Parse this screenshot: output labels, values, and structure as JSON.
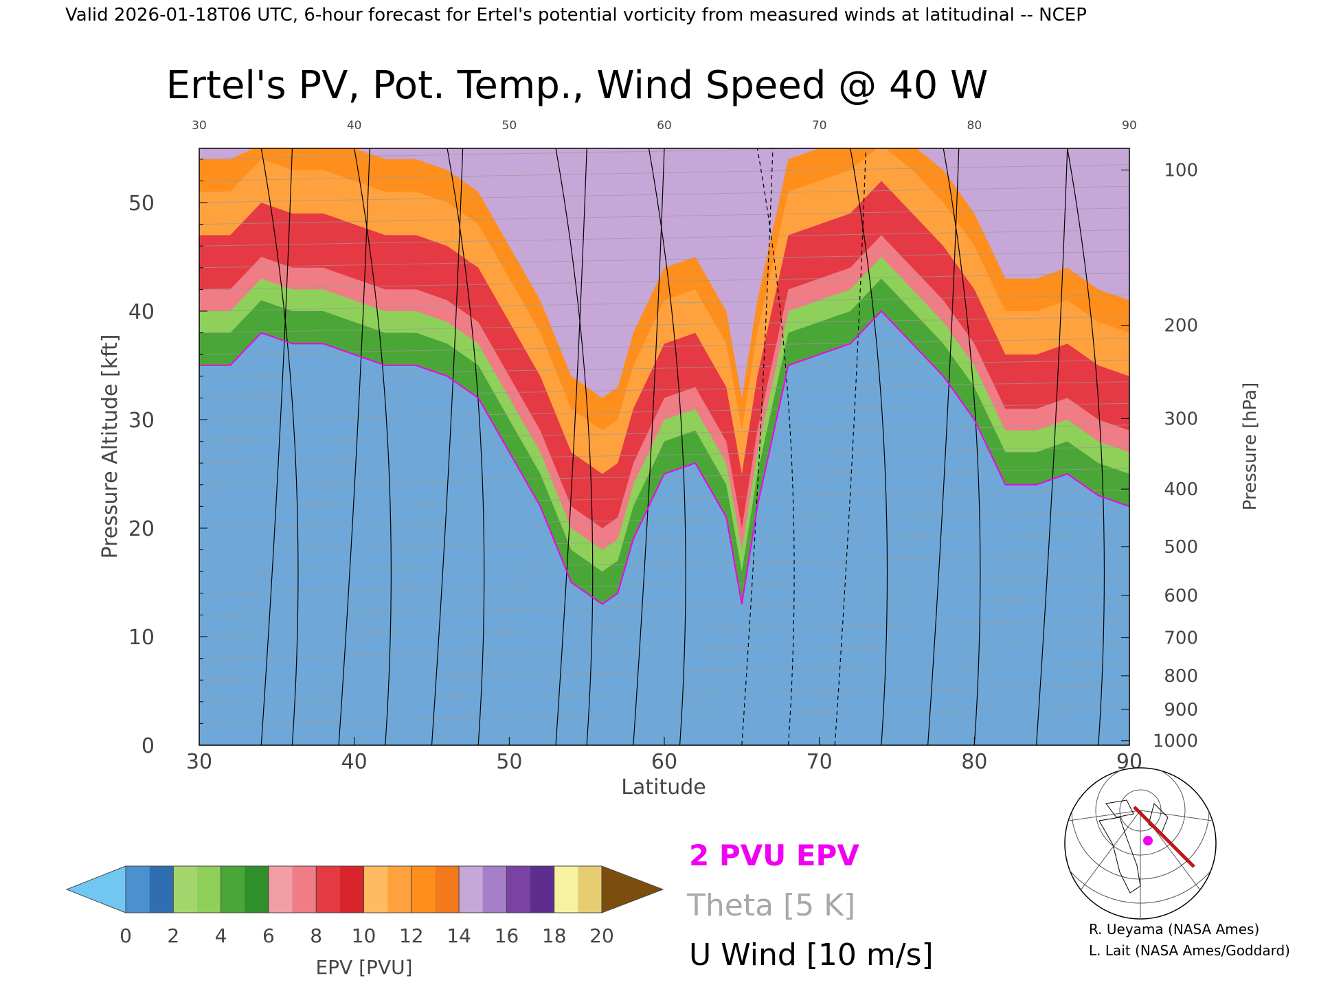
{
  "header": {
    "line": "Valid 2026-01-18T06 UTC, 6-hour forecast for Ertel's potential vorticity from measured winds at latitudinal -- NCEP"
  },
  "chart_data": {
    "type": "heatmap",
    "title": "Ertel's PV, Pot. Temp., Wind Speed @ 40 W",
    "xlabel": "Latitude",
    "ylabel": "Pressure Altitude [kft]",
    "y2label": "Pressure [hPa]",
    "xlim": [
      30,
      90
    ],
    "ylim": [
      0,
      55
    ],
    "x_ticks": [
      "30",
      "40",
      "50",
      "60",
      "70",
      "80",
      "90"
    ],
    "y_ticks": [
      "0",
      "10",
      "20",
      "30",
      "40",
      "50"
    ],
    "pressure_ticks": [
      {
        "label": "100",
        "kft": 53.0
      },
      {
        "label": "200",
        "kft": 38.7
      },
      {
        "label": "300",
        "kft": 30.1
      },
      {
        "label": "400",
        "kft": 23.6
      },
      {
        "label": "500",
        "kft": 18.3
      },
      {
        "label": "600",
        "kft": 13.8
      },
      {
        "label": "700",
        "kft": 9.9
      },
      {
        "label": "800",
        "kft": 6.4
      },
      {
        "label": "900",
        "kft": 3.3
      },
      {
        "label": "1000",
        "kft": 0.4
      }
    ],
    "pv_2pvu_contour": {
      "lat": [
        30,
        32,
        34,
        36,
        38,
        40,
        42,
        44,
        46,
        48,
        50,
        52,
        54,
        56,
        57,
        58,
        60,
        62,
        64,
        65,
        66,
        68,
        70,
        72,
        74,
        76,
        78,
        80,
        82,
        84,
        86,
        88,
        90
      ],
      "kft": [
        35,
        35,
        38,
        37,
        37,
        36,
        35,
        35,
        34,
        32,
        27,
        22,
        15,
        13,
        14,
        19,
        25,
        26,
        21,
        13,
        22,
        35,
        36,
        37,
        40,
        37,
        34,
        30,
        24,
        24,
        25,
        23,
        22
      ]
    },
    "epv_colorbar": {
      "label": "EPV [PVU]",
      "ticks": [
        "0",
        "2",
        "4",
        "6",
        "8",
        "10",
        "12",
        "14",
        "16",
        "18",
        "20"
      ],
      "colors": [
        "#72c7f2",
        "#4b91cf",
        "#2f6fb1",
        "#a4d56c",
        "#8ed05a",
        "#4aa636",
        "#2f8f2a",
        "#f39ea4",
        "#f07c86",
        "#e53a44",
        "#d9242c",
        "#ffbb62",
        "#ffa23e",
        "#ff8f1c",
        "#f4781c",
        "#c6a7d8",
        "#a77fc8",
        "#7b42a6",
        "#5d2e8e",
        "#f6f2a0",
        "#e6cd72",
        "#7c4e0d"
      ]
    }
  },
  "legend": {
    "pv": "2 PVU EPV",
    "theta": "Theta [5 K]",
    "uwind": "U Wind [10 m/s]",
    "pv_color": "#f000f0",
    "theta_color": "#a8a8a8",
    "uwind_color": "#000000"
  },
  "credits": {
    "line1": "R. Ueyama (NASA Ames)",
    "line2": "L. Lait (NASA Ames/Goddard)"
  }
}
